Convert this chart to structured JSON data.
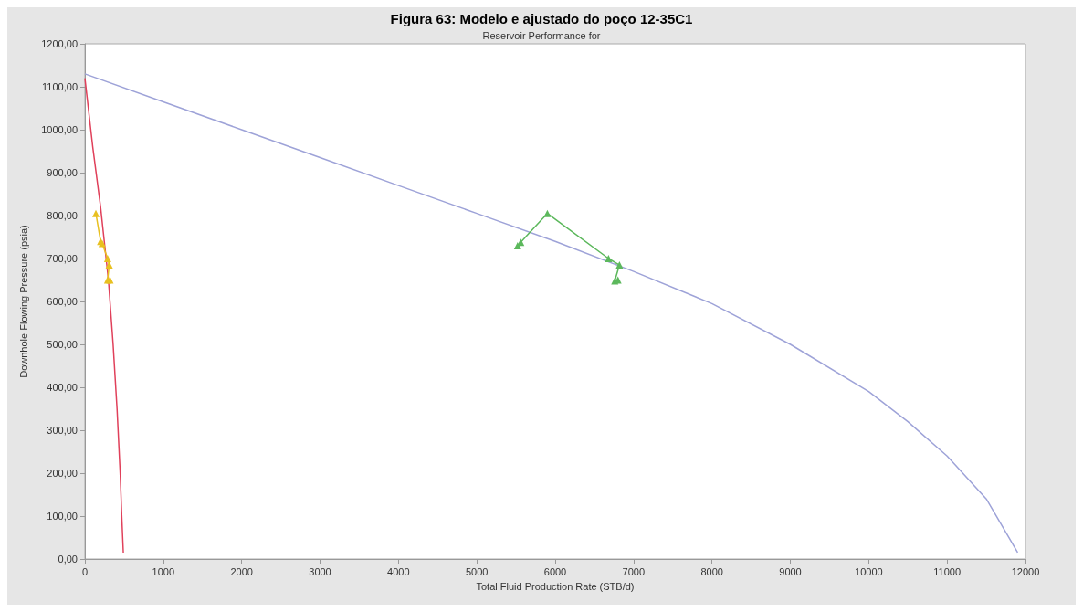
{
  "chart_data": {
    "type": "line",
    "title": "Figura 63: Modelo e ajustado do poço 12-35C1",
    "subtitle": "Reservoir Performance for",
    "xlabel": "Total Fluid Production Rate (STB/d)",
    "ylabel": "Downhole Flowing Pressure (psia)",
    "xlim": [
      0,
      12000
    ],
    "xticks": [
      0,
      1000,
      2000,
      3000,
      4000,
      5000,
      6000,
      7000,
      8000,
      9000,
      10000,
      11000,
      12000
    ],
    "ylim": [
      0,
      1200
    ],
    "yticks": [
      {
        "value": 0,
        "label": "0,00"
      },
      {
        "value": 100,
        "label": "100,00"
      },
      {
        "value": 200,
        "label": "200,00"
      },
      {
        "value": 300,
        "label": "300,00"
      },
      {
        "value": 400,
        "label": "400,00"
      },
      {
        "value": 500,
        "label": "500,00"
      },
      {
        "value": 600,
        "label": "600,00"
      },
      {
        "value": 700,
        "label": "700,00"
      },
      {
        "value": 800,
        "label": "800,00"
      },
      {
        "value": 900,
        "label": "900,00"
      },
      {
        "value": 1000,
        "label": "1000,00"
      },
      {
        "value": 1100,
        "label": "1100,00"
      },
      {
        "value": 1200,
        "label": "1200,00"
      }
    ],
    "grid": false,
    "marker": "none",
    "line_style": "solid",
    "series": [
      {
        "color": "#9ea3d8",
        "x": [
          0,
          1000,
          2000,
          3000,
          4000,
          5000,
          6000,
          7000,
          8000,
          9000,
          10000,
          10500,
          11000,
          11500,
          11900
        ],
        "values": [
          1130,
          1065,
          1000,
          935,
          870,
          805,
          740,
          670,
          595,
          500,
          390,
          320,
          240,
          140,
          15
        ]
      },
      {
        "color": "#e0405a",
        "x": [
          0,
          100,
          200,
          300,
          360,
          410,
          450,
          470,
          490
        ],
        "values": [
          1120,
          960,
          820,
          650,
          500,
          350,
          200,
          100,
          15
        ]
      },
      {
        "color": "#e8c020",
        "marker": "triangle",
        "x": [
          140,
          200,
          220,
          290,
          310,
          290,
          320
        ],
        "values": [
          805,
          740,
          735,
          700,
          685,
          650,
          650
        ]
      },
      {
        "color": "#5cb85c",
        "marker": "triangle",
        "x": [
          5520,
          5560,
          5900,
          6680,
          6820,
          6760,
          6800
        ],
        "values": [
          730,
          738,
          805,
          700,
          685,
          648,
          650
        ]
      }
    ]
  }
}
